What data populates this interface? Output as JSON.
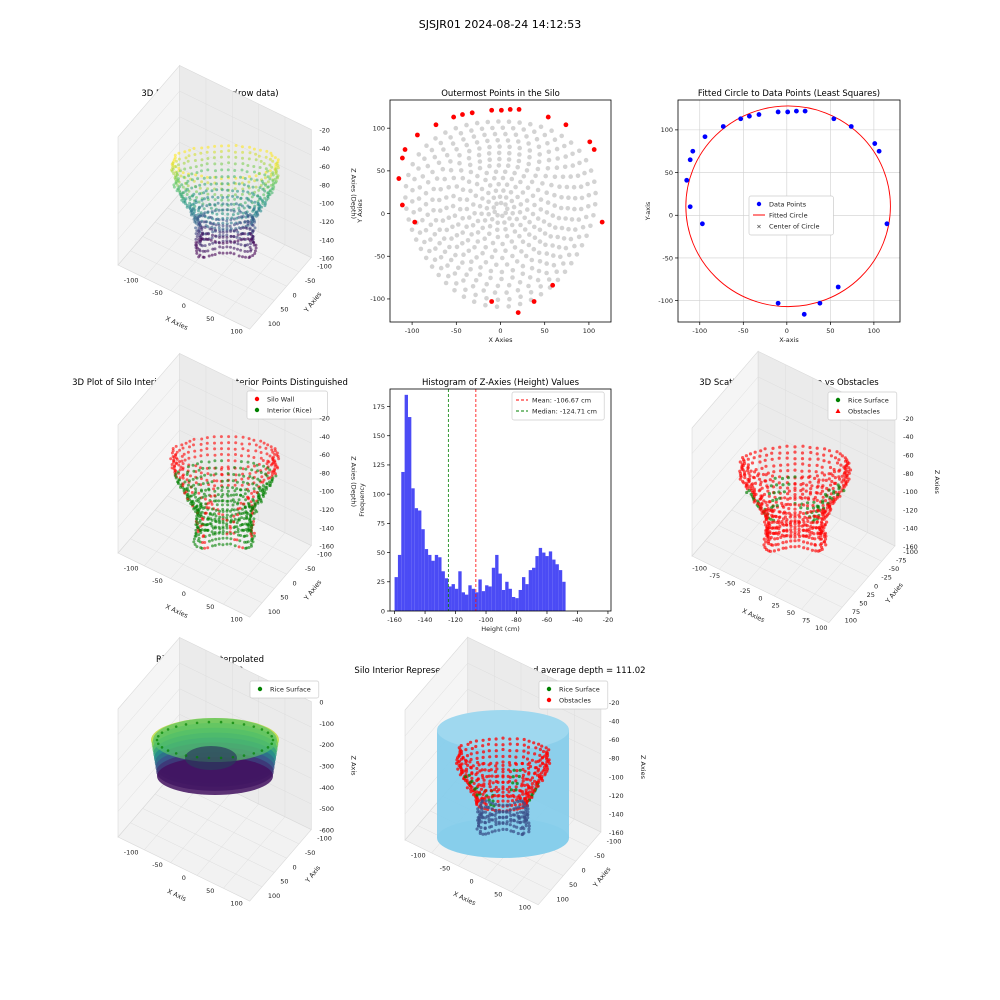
{
  "figure": {
    "suptitle": "SJSJR01 2024-08-24 14:12:53"
  },
  "chart_data": [
    {
      "id": "p1",
      "type": "scatter3d",
      "title": "3D Plot of Silo Interior(row data)",
      "xlabel": "X Axies",
      "ylabel": "Y Axies",
      "zlabel": "Z Axies (Depth)",
      "xticks": [
        -100,
        -50,
        0,
        50,
        100
      ],
      "yticks": [
        100,
        50,
        0,
        -50,
        -100
      ],
      "zticks": [
        -20,
        -40,
        -60,
        -80,
        -100,
        -120,
        -140,
        -160
      ],
      "colormap": "viridis"
    },
    {
      "id": "p2",
      "type": "scatter",
      "title": "Outermost Points in the Silo",
      "xlabel": "X Axies",
      "ylabel": "Y Axies",
      "xlim": [
        -125,
        125
      ],
      "ylim": [
        -127,
        133
      ],
      "xticks": [
        -100,
        -50,
        0,
        50,
        100
      ],
      "yticks": [
        100,
        50,
        0,
        -50,
        -100
      ],
      "grid": false,
      "colors": {
        "all_points": "#d3d3d3",
        "outermost": "#ff0000"
      },
      "outermost_points": [
        [
          -115,
          41
        ],
        [
          -111,
          65
        ],
        [
          -108,
          75
        ],
        [
          -111,
          10
        ],
        [
          -94,
          92
        ],
        [
          -73,
          104
        ],
        [
          -97,
          -10
        ],
        [
          -53,
          113
        ],
        [
          -43,
          116
        ],
        [
          -32,
          118
        ],
        [
          -10,
          121
        ],
        [
          1,
          121
        ],
        [
          11,
          122
        ],
        [
          21,
          122
        ],
        [
          54,
          113
        ],
        [
          74,
          104
        ],
        [
          101,
          84
        ],
        [
          106,
          75
        ],
        [
          115,
          -10
        ],
        [
          -10,
          -103
        ],
        [
          38,
          -103
        ],
        [
          59,
          -84
        ],
        [
          20,
          -116
        ]
      ]
    },
    {
      "id": "p3",
      "type": "scatter",
      "title": "Fitted Circle to Data Points (Least Squares)",
      "xlabel": "X-axis",
      "ylabel": "Y-axis",
      "xlim": [
        -125,
        130
      ],
      "ylim": [
        -125,
        135
      ],
      "xticks": [
        -100,
        -50,
        0,
        50,
        100
      ],
      "yticks": [
        100,
        50,
        0,
        -50,
        -100
      ],
      "grid": true,
      "legend_position": "center",
      "legend": [
        "Data Points",
        "Fitted Circle",
        "Center of Circle"
      ],
      "circle": {
        "cx": 1.5,
        "cy": 10.5,
        "r": 117.5
      },
      "colors": {
        "points": "#0000ff",
        "circle": "#ff0000",
        "center": "#008000"
      },
      "points": [
        [
          -115,
          41
        ],
        [
          -111,
          65
        ],
        [
          -108,
          75
        ],
        [
          -111,
          10
        ],
        [
          -94,
          92
        ],
        [
          -73,
          104
        ],
        [
          -97,
          -10
        ],
        [
          -53,
          113
        ],
        [
          -43,
          116
        ],
        [
          -32,
          118
        ],
        [
          -10,
          121
        ],
        [
          1,
          121
        ],
        [
          11,
          122
        ],
        [
          21,
          122
        ],
        [
          54,
          113
        ],
        [
          74,
          104
        ],
        [
          101,
          84
        ],
        [
          106,
          75
        ],
        [
          115,
          -10
        ],
        [
          -10,
          -103
        ],
        [
          38,
          -103
        ],
        [
          59,
          -84
        ],
        [
          20,
          -116
        ]
      ]
    },
    {
      "id": "p4",
      "type": "scatter3d",
      "title": "3D Plot of Silo Interior with Wall and Interior Points Distinguished",
      "xlabel": "X Axies",
      "ylabel": "Y Axies",
      "zlabel": "Z Axies (Depth)",
      "xticks": [
        -100,
        -50,
        0,
        50,
        100
      ],
      "yticks": [
        100,
        50,
        0,
        -50,
        -100
      ],
      "zticks": [
        -20,
        -40,
        -60,
        -80,
        -100,
        -120,
        -140,
        -160
      ],
      "legend_position": "top-right",
      "series": [
        {
          "name": "Silo Wall",
          "color": "#ff0000"
        },
        {
          "name": "Interior (Rice)",
          "color": "#008000"
        }
      ]
    },
    {
      "id": "p5",
      "type": "bar",
      "title": "Histogram of Z-Axies (Height) Values",
      "xlabel": "Height (cm)",
      "ylabel": "Frequency",
      "xlim": [
        -163,
        -18
      ],
      "ylim": [
        0,
        190
      ],
      "xticks": [
        -160,
        -140,
        -120,
        -100,
        -80,
        -60,
        -40,
        -20
      ],
      "yticks": [
        0,
        25,
        50,
        75,
        100,
        125,
        150,
        175
      ],
      "bin_start": -160,
      "bin_width": 2.2,
      "values": [
        29,
        48,
        119,
        185,
        166,
        105,
        88,
        86,
        70,
        53,
        48,
        43,
        48,
        46,
        34,
        28,
        21,
        23,
        19,
        34,
        16,
        14,
        22,
        19,
        16,
        27,
        17,
        22,
        21,
        37,
        48,
        32,
        18,
        25,
        19,
        12,
        11,
        18,
        29,
        23,
        35,
        37,
        47,
        54,
        50,
        47,
        51,
        44,
        40,
        35,
        25
      ],
      "bar_color": "#4b4bf5",
      "lines": [
        {
          "x": -106.67,
          "color": "#ff0000"
        },
        {
          "x": -124.71,
          "color": "#008000"
        }
      ],
      "legend_position": "top-right",
      "legend": [
        "Mean: -106.67 cm",
        "Median: -124.71 cm"
      ]
    },
    {
      "id": "p6",
      "type": "scatter3d",
      "title": "3D Scatter Plot: Rice Surface vs Obstacles",
      "xlabel": "X Axies",
      "ylabel": "Y Axies",
      "zlabel": "Z Axies",
      "xticks": [
        -100,
        -75,
        -50,
        -25,
        0,
        25,
        50,
        75,
        100
      ],
      "yticks": [
        100,
        75,
        50,
        25,
        0,
        -25,
        -50,
        -75,
        -100
      ],
      "zticks": [
        -20,
        -40,
        -60,
        -80,
        -100,
        -120,
        -140,
        -160
      ],
      "legend_position": "top-right",
      "series": [
        {
          "name": "Rice Surface",
          "color": "#008000"
        },
        {
          "name": "Obstacles",
          "color": "#ff0000"
        }
      ]
    },
    {
      "id": "p7",
      "type": "surface3d",
      "title": "Rice Surface Interpolated",
      "subtitle": "depth = 111.02",
      "xlabel": "X Axis",
      "ylabel": "Y Axis",
      "zlabel": "Z Axis",
      "xticks": [
        -100,
        -50,
        0,
        50,
        100
      ],
      "yticks": [
        100,
        50,
        0,
        -50,
        -100
      ],
      "zticks": [
        0,
        -100,
        -200,
        -300,
        -400,
        -500,
        -600
      ],
      "legend_position": "top-right",
      "series": [
        {
          "name": "Rice Surface",
          "color": "#008000"
        }
      ]
    },
    {
      "id": "p8",
      "type": "scatter3d",
      "title": "Silo Interior Representation using weighted average depth = 111.02",
      "xlabel": "X Axies",
      "ylabel": "Y Axies",
      "zlabel": "Z Axies",
      "xticks": [
        -100,
        -50,
        0,
        50,
        100
      ],
      "yticks": [
        100,
        50,
        0,
        -50,
        -100
      ],
      "zticks": [
        -20,
        -40,
        -60,
        -80,
        -100,
        -120,
        -140,
        -160
      ],
      "legend_position": "top-right",
      "series": [
        {
          "name": "Rice Surface",
          "color": "#008000"
        },
        {
          "name": "Obstacles",
          "color": "#ff0000"
        }
      ],
      "cylinder_color": "#87ceeb"
    }
  ]
}
